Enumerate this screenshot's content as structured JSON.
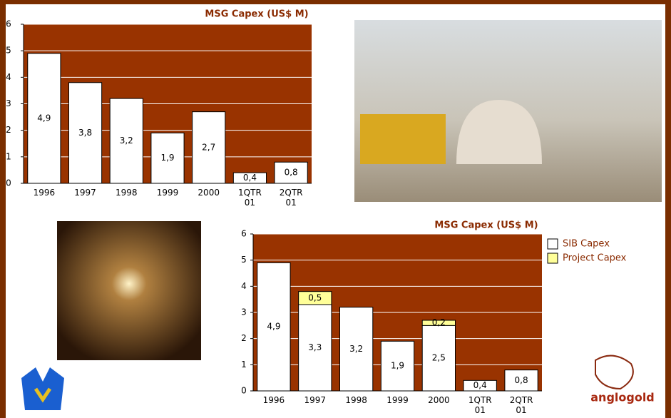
{
  "chart_data": [
    {
      "type": "bar",
      "title": "MSG Capex (US$ M)",
      "categories": [
        "1996",
        "1997",
        "1998",
        "1999",
        "2000",
        "1QTR 01",
        "2QTR 01"
      ],
      "values": [
        4.9,
        3.8,
        3.2,
        1.9,
        2.7,
        0.4,
        0.8
      ],
      "value_labels": [
        "4,9",
        "3,8",
        "3,2",
        "1,9",
        "2,7",
        "0,4",
        "0,8"
      ],
      "color": "#ffffff",
      "plot_color": "#993300",
      "ylim": [
        0,
        6
      ],
      "yticks": [
        0,
        1,
        2,
        3,
        4,
        5,
        6
      ],
      "grid": true
    },
    {
      "type": "stacked_bar",
      "title": "MSG Capex (US$ M)",
      "categories": [
        "1996",
        "1997",
        "1998",
        "1999",
        "2000",
        "1QTR 01",
        "2QTR 01"
      ],
      "series": [
        {
          "name": "SIB Capex",
          "color": "#ffffff",
          "values": [
            4.9,
            3.3,
            3.2,
            1.9,
            2.5,
            0.4,
            0.8
          ],
          "value_labels": [
            "4,9",
            "3,3",
            "3,2",
            "1,9",
            "2,5",
            "0,4",
            "0,8"
          ]
        },
        {
          "name": "Project Capex",
          "color": "#ffff99",
          "values": [
            null,
            0.5,
            null,
            null,
            0.2,
            null,
            null
          ],
          "value_labels": [
            null,
            "0,5",
            null,
            null,
            "0,2",
            null,
            null
          ]
        }
      ],
      "plot_color": "#993300",
      "legend": "right",
      "ylim": [
        0,
        6
      ],
      "yticks": [
        0,
        1,
        2,
        3,
        4,
        5,
        6
      ],
      "grid": true
    }
  ],
  "logo_text": "anglogold"
}
